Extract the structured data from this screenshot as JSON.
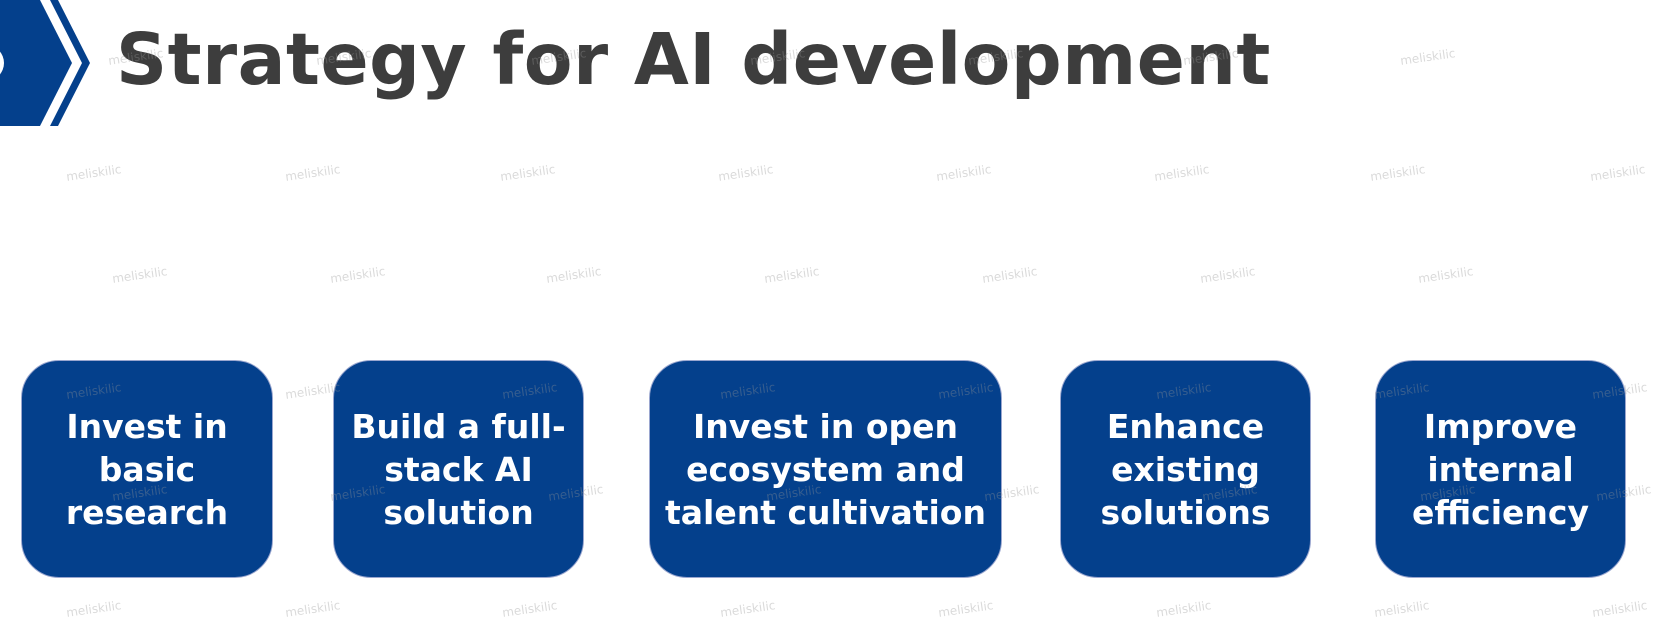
{
  "slide": {
    "title": "Strategy for AI development",
    "accent_color": "#04408c",
    "title_color": "#3d3d3d",
    "watermark_text": "meliskilic"
  },
  "cards": [
    {
      "label": "Invest in\nbasic\nresearch"
    },
    {
      "label": "Build a full-\nstack AI\nsolution"
    },
    {
      "label": "Invest in open\necosystem and\ntalent cultivation"
    },
    {
      "label": "Enhance\nexisting\nsolutions"
    },
    {
      "label": "Improve\ninternal\nefficiency"
    }
  ],
  "icons": {
    "header_badge": "chevron-arrow-icon"
  }
}
